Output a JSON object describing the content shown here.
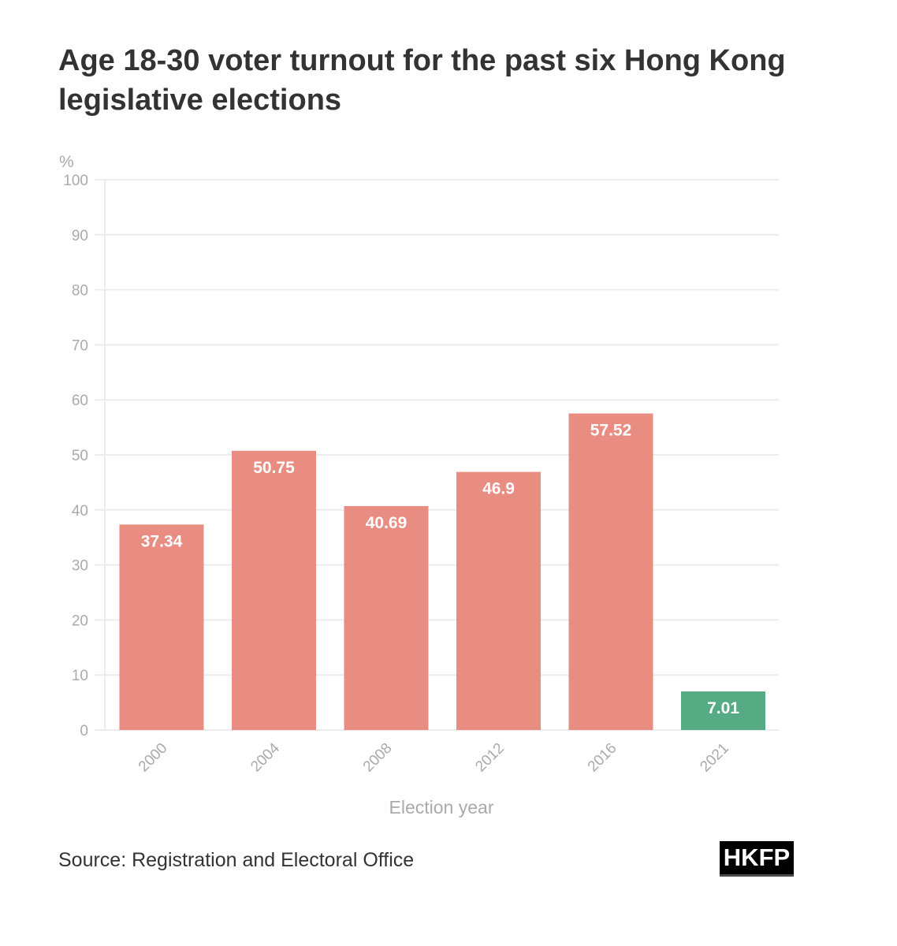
{
  "chart_data": {
    "type": "bar",
    "title": "Age 18-30 voter turnout for the past six Hong Kong legislative elections",
    "xlabel": "Election year",
    "ylabel": "%",
    "ylim": [
      0,
      100
    ],
    "yticks": [
      0,
      10,
      20,
      30,
      40,
      50,
      60,
      70,
      80,
      90,
      100
    ],
    "categories": [
      "2000",
      "2004",
      "2008",
      "2012",
      "2016",
      "2021"
    ],
    "values": [
      37.34,
      50.75,
      40.69,
      46.9,
      57.52,
      7.01
    ],
    "value_labels": [
      "37.34",
      "50.75",
      "40.69",
      "46.9",
      "57.52",
      "7.01"
    ],
    "bar_colors": [
      "#e98d83",
      "#e98d83",
      "#e98d83",
      "#e98d83",
      "#e98d83",
      "#56ab85"
    ],
    "grid": true
  },
  "source": "Source: Registration and Electoral Office",
  "logo_text": "HKFP",
  "colors": {
    "bar_default": "#e98d83",
    "bar_highlight": "#56ab85",
    "grid": "#ececec",
    "tick_text": "#aaaaaa",
    "title_text": "#333333"
  }
}
